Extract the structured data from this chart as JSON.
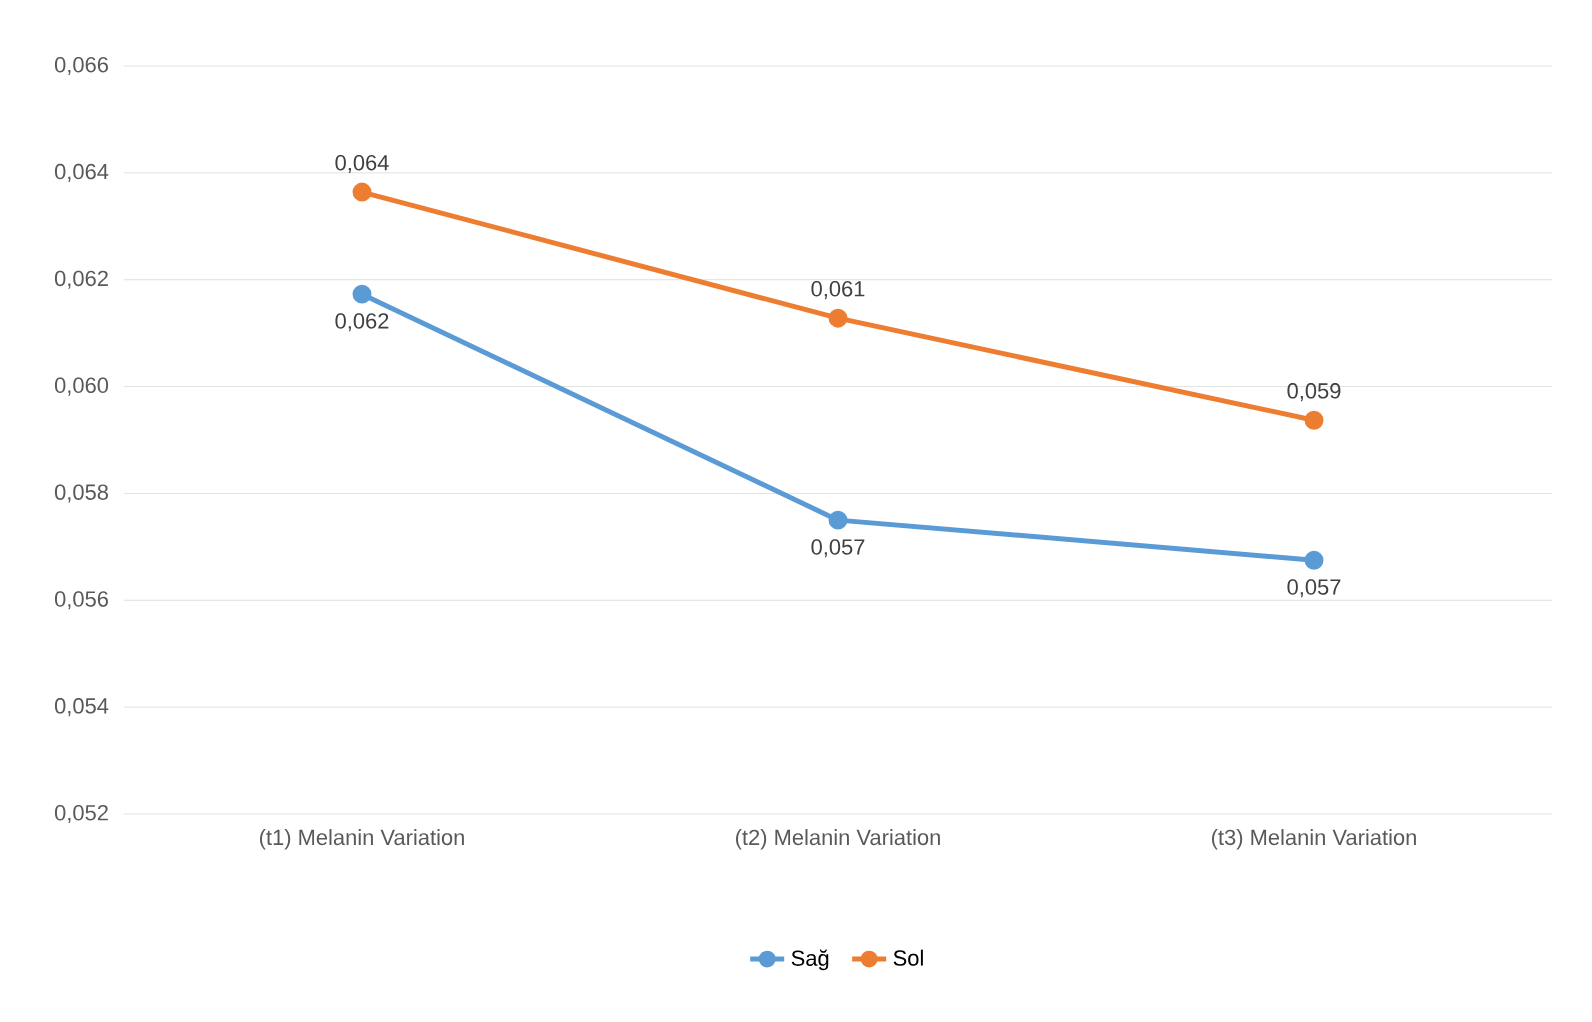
{
  "chart_data": {
    "type": "line",
    "categories": [
      "(t1) Melanin Variation",
      "(t2) Melanin Variation",
      "(t3) Melanin Variation"
    ],
    "series": [
      {
        "name": "Sağ",
        "color": "#5b9bd5",
        "values": [
          0.06173,
          0.0575,
          0.05675
        ],
        "value_labels": [
          "0,062",
          "0,057",
          "0,057"
        ]
      },
      {
        "name": "Sol",
        "color": "#ed7d31",
        "values": [
          0.06364,
          0.06128,
          0.05937
        ],
        "value_labels": [
          "0,064",
          "0,061",
          "0,059"
        ]
      }
    ],
    "ylim": [
      0.052,
      0.066
    ],
    "yticks": [
      {
        "value": 0.052,
        "label": "0,052"
      },
      {
        "value": 0.054,
        "label": "0,054"
      },
      {
        "value": 0.056,
        "label": "0,056"
      },
      {
        "value": 0.058,
        "label": "0,058"
      },
      {
        "value": 0.06,
        "label": "0,060"
      },
      {
        "value": 0.062,
        "label": "0,062"
      },
      {
        "value": 0.064,
        "label": "0,064"
      },
      {
        "value": 0.066,
        "label": "0,066"
      }
    ],
    "grid": "y",
    "legend": "bottom",
    "marker": "circle",
    "line_style": "solid"
  }
}
